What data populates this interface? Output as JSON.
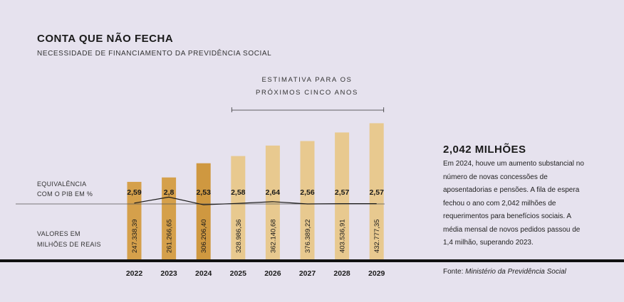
{
  "header": {
    "title": "CONTA QUE NÃO FECHA",
    "subtitle": "NECESSIDADE DE FINANCIAMENTO DA PREVIDÊNCIA SOCIAL"
  },
  "projection_label": {
    "line1": "ESTIMATIVA PARA OS",
    "line2": "PRÓXIMOS CINCO ANOS"
  },
  "side_labels": {
    "gdp_line1": "EQUIVALÊNCIA",
    "gdp_line2": "COM O PIB EM %",
    "values_line1": "VALORES EM",
    "values_line2": "MILHÕES DE REAIS"
  },
  "highlight": {
    "title": "2,042 MILHÕES",
    "body": "Em 2024, houve um aumento substancial no número de novas concessões de aposentadorias e pensões. A fila de espera fechou o ano com 2,042 milhões de requerimentos para benefícios sociais. A média mensal de novos pedidos passou de 1,4 milhão, superando 2023."
  },
  "source": {
    "prefix": "Fonte: ",
    "name": "Ministério da Previdência Social"
  },
  "colors": {
    "actual": "#d5a04b",
    "actual_2024": "#cf9840",
    "projected": "#e8c98f",
    "background": "#e6e2ee"
  },
  "chart_data": {
    "type": "bar",
    "categories": [
      "2022",
      "2023",
      "2024",
      "2025",
      "2026",
      "2027",
      "2028",
      "2029"
    ],
    "values": [
      247338.39,
      261266.65,
      306206.4,
      328986.36,
      362140.68,
      376389.22,
      403536.91,
      432777.35
    ],
    "value_labels": [
      "247.338,39",
      "261.266,65",
      "306.206,40",
      "328.986,36",
      "362.140,68",
      "376.389,22",
      "403.536,91",
      "432.777,35"
    ],
    "projected": [
      false,
      false,
      false,
      true,
      true,
      true,
      true,
      true
    ],
    "gdp_percent": [
      2.59,
      2.8,
      2.53,
      2.58,
      2.64,
      2.56,
      2.57,
      2.57
    ],
    "gdp_labels": [
      "2,59",
      "2,8",
      "2,53",
      "2,58",
      "2,64",
      "2,56",
      "2,57",
      "2,57"
    ],
    "projection_range": [
      "2025",
      "2029"
    ],
    "grid": false
  }
}
